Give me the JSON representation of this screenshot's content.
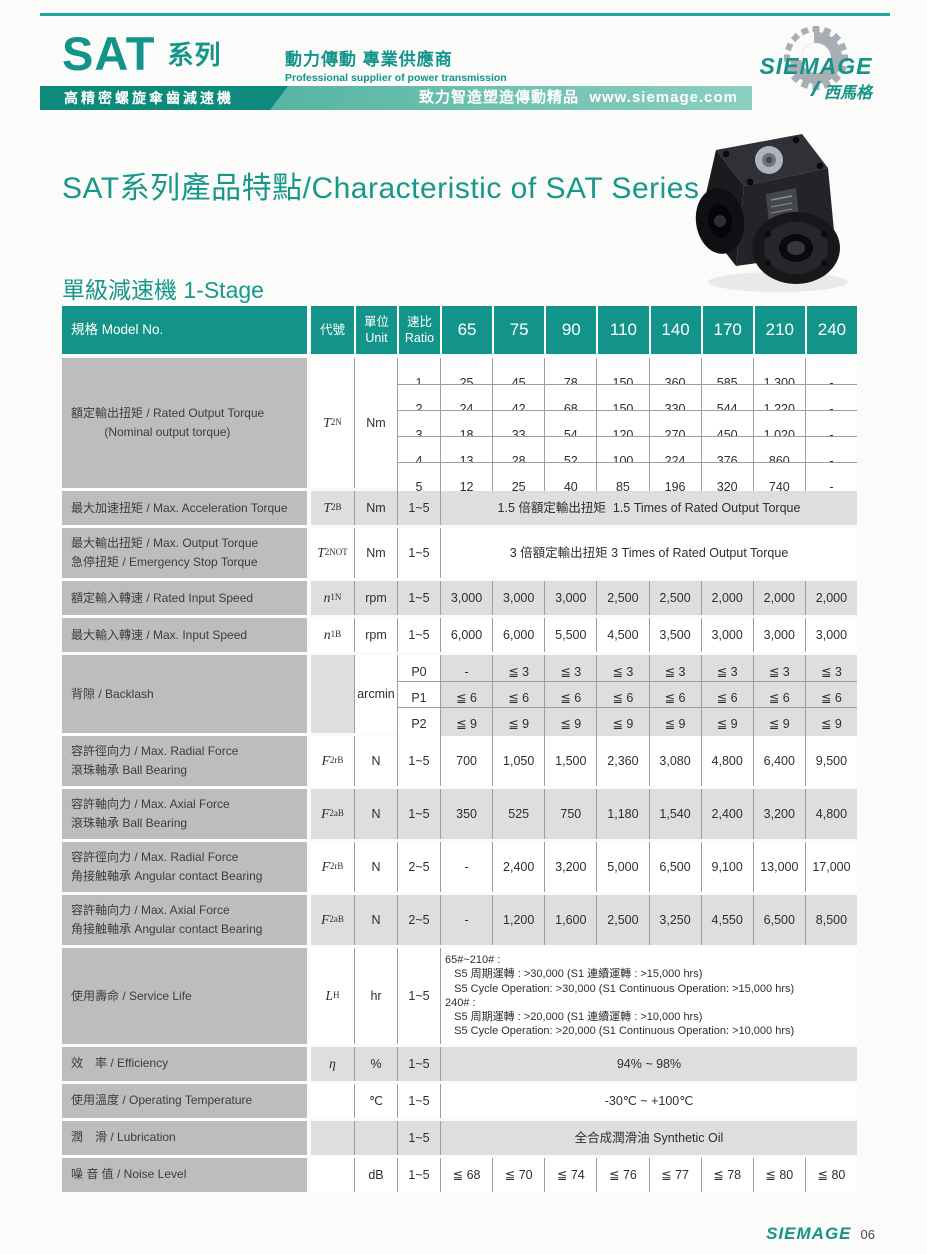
{
  "header": {
    "brand": "SAT",
    "brand_suffix": "系列",
    "tagline_zh": "動力傳動 專業供應商",
    "tagline_en": "Professional supplier of power transmission",
    "banner_left": "高精密螺旋傘齒減速機",
    "banner_right": "致力智造塑造傳動精品  www.siemage.com",
    "logo_text": "SIEMAGE",
    "logo_zh": "西馬格"
  },
  "title": "SAT系列產品特點/Characteristic of SAT Series",
  "section": {
    "zh": "單級減速機",
    "en": "1-Stage"
  },
  "footer": {
    "logo": "SIEMAGE",
    "page": "06"
  },
  "colors": {
    "teal": "#13948a",
    "banner_dark": "#0d8a7c",
    "label_gray": "#bdbdbd",
    "row_gray": "#dedede"
  },
  "table": {
    "header": {
      "model": "規格 Model No.",
      "code": "代號",
      "unit": "單位\nUnit",
      "ratio": "速比\nRatio",
      "sizes": [
        "65",
        "75",
        "90",
        "110",
        "140",
        "170",
        "210",
        "240"
      ]
    },
    "groups": [
      {
        "type": "subrows",
        "shade": "white",
        "label": "額定輸出扭矩 / Rated Output Torque\n          (Nominal output torque)",
        "code": [
          "T",
          "2N"
        ],
        "unit": "Nm",
        "rows": [
          [
            "1",
            "25",
            "45",
            "78",
            "150",
            "360",
            "585",
            "1,300",
            "-"
          ],
          [
            "2",
            "24",
            "42",
            "68",
            "150",
            "330",
            "544",
            "1,220",
            "-"
          ],
          [
            "3",
            "18",
            "33",
            "54",
            "120",
            "270",
            "450",
            "1,020",
            "-"
          ],
          [
            "4",
            "13",
            "28",
            "52",
            "100",
            "224",
            "376",
            "860",
            "-"
          ],
          [
            "5",
            "12",
            "25",
            "40",
            "85",
            "196",
            "320",
            "740",
            "-"
          ]
        ]
      },
      {
        "type": "merged",
        "shade": "gray",
        "label": "最大加速扭矩 / Max. Acceleration Torque",
        "code": [
          "T",
          "2B"
        ],
        "unit": "Nm",
        "ratio": "1~5",
        "text": "1.5 倍額定輸出扭矩  1.5 Times of Rated Output Torque"
      },
      {
        "type": "merged",
        "shade": "white",
        "label": "最大輸出扭矩 / Max. Output Torque\n急停扭矩 / Emergency Stop Torque",
        "code": [
          "T",
          "2NOT"
        ],
        "unit": "Nm",
        "ratio": "1~5",
        "text": "3 倍額定輸出扭矩 3 Times of Rated Output Torque"
      },
      {
        "type": "single",
        "shade": "gray",
        "label": "額定輸入轉速 / Rated Input Speed",
        "code": [
          "n",
          "1N"
        ],
        "unit": "rpm",
        "ratio": "1~5",
        "values": [
          "3,000",
          "3,000",
          "3,000",
          "2,500",
          "2,500",
          "2,000",
          "2,000",
          "2,000"
        ]
      },
      {
        "type": "single",
        "shade": "white",
        "label": "最大輸入轉速 / Max. Input Speed",
        "code": [
          "n",
          "1B"
        ],
        "unit": "rpm",
        "ratio": "1~5",
        "values": [
          "6,000",
          "6,000",
          "5,500",
          "4,500",
          "3,500",
          "3,000",
          "3,000",
          "3,000"
        ]
      },
      {
        "type": "subrows",
        "shade": "gray",
        "unit_shade": "white",
        "ratio_shade": "white",
        "label": "背隙 / Backlash",
        "code": null,
        "unit": "arcmin",
        "rows": [
          [
            "P0",
            "-",
            "≦ 3",
            "≦ 3",
            "≦ 3",
            "≦ 3",
            "≦ 3",
            "≦ 3",
            "≦ 3"
          ],
          [
            "P1",
            "≦ 6",
            "≦ 6",
            "≦ 6",
            "≦ 6",
            "≦ 6",
            "≦ 6",
            "≦ 6",
            "≦ 6"
          ],
          [
            "P2",
            "≦ 9",
            "≦ 9",
            "≦ 9",
            "≦ 9",
            "≦ 9",
            "≦ 9",
            "≦ 9",
            "≦ 9"
          ]
        ]
      },
      {
        "type": "single",
        "shade": "white",
        "label": "容許徑向力 / Max. Radial Force\n滾珠軸承 Ball Bearing",
        "code": [
          "F",
          "2rB"
        ],
        "unit": "N",
        "ratio": "1~5",
        "values": [
          "700",
          "1,050",
          "1,500",
          "2,360",
          "3,080",
          "4,800",
          "6,400",
          "9,500"
        ]
      },
      {
        "type": "single",
        "shade": "gray",
        "label": "容許軸向力 / Max. Axial Force\n滾珠軸承 Ball Bearing",
        "code": [
          "F",
          "2aB"
        ],
        "unit": "N",
        "ratio": "1~5",
        "values": [
          "350",
          "525",
          "750",
          "1,180",
          "1,540",
          "2,400",
          "3,200",
          "4,800"
        ]
      },
      {
        "type": "single",
        "shade": "white",
        "label": "容許徑向力 / Max. Radial Force\n角接触軸承 Angular contact Bearing",
        "code": [
          "F",
          "2rB"
        ],
        "unit": "N",
        "ratio": "2~5",
        "values": [
          "-",
          "2,400",
          "3,200",
          "5,000",
          "6,500",
          "9,100",
          "13,000",
          "17,000"
        ]
      },
      {
        "type": "single",
        "shade": "gray",
        "label": "容許軸向力 / Max. Axial Force\n角接触軸承 Angular contact Bearing",
        "code": [
          "F",
          "2aB"
        ],
        "unit": "N",
        "ratio": "2~5",
        "values": [
          "-",
          "1,200",
          "1,600",
          "2,500",
          "3,250",
          "4,550",
          "6,500",
          "8,500"
        ]
      },
      {
        "type": "merged",
        "shade": "white",
        "left_text": true,
        "label": "使用壽命 / Service Life",
        "code": [
          "L",
          "H"
        ],
        "unit": "hr",
        "ratio": "1~5",
        "lines": [
          "65#~210# :",
          "   S5 周期運轉 : >30,000 (S1 連續運轉 : >15,000 hrs)",
          "   S5 Cycle Operation: >30,000 (S1 Continuous Operation: >15,000 hrs)",
          "240# :",
          "   S5 周期運轉 : >20,000 (S1 連續運轉 : >10,000 hrs)",
          "   S5 Cycle Operation: >20,000 (S1 Continuous Operation: >10,000 hrs)"
        ]
      },
      {
        "type": "merged",
        "shade": "gray",
        "label": "效　率 / Efficiency",
        "code": [
          "η",
          ""
        ],
        "unit": "%",
        "ratio": "1~5",
        "text": "94% ~ 98%"
      },
      {
        "type": "merged",
        "shade": "white",
        "label": "使用溫度 / Operating Temperature",
        "code": null,
        "unit": "℃",
        "ratio": "1~5",
        "text": "-30℃ ~ +100℃"
      },
      {
        "type": "merged",
        "shade": "gray",
        "label": "潤　滑 / Lubrication",
        "code": null,
        "unit": "",
        "ratio": "1~5",
        "text": "全合成潤滑油 Synthetic Oil"
      },
      {
        "type": "single",
        "shade": "white",
        "label": "噪 音 值 / Noise Level",
        "code": null,
        "unit": "dB",
        "ratio": "1~5",
        "values": [
          "≦ 68",
          "≦ 70",
          "≦ 74",
          "≦ 76",
          "≦ 77",
          "≦ 78",
          "≦ 80",
          "≦ 80"
        ]
      }
    ]
  }
}
